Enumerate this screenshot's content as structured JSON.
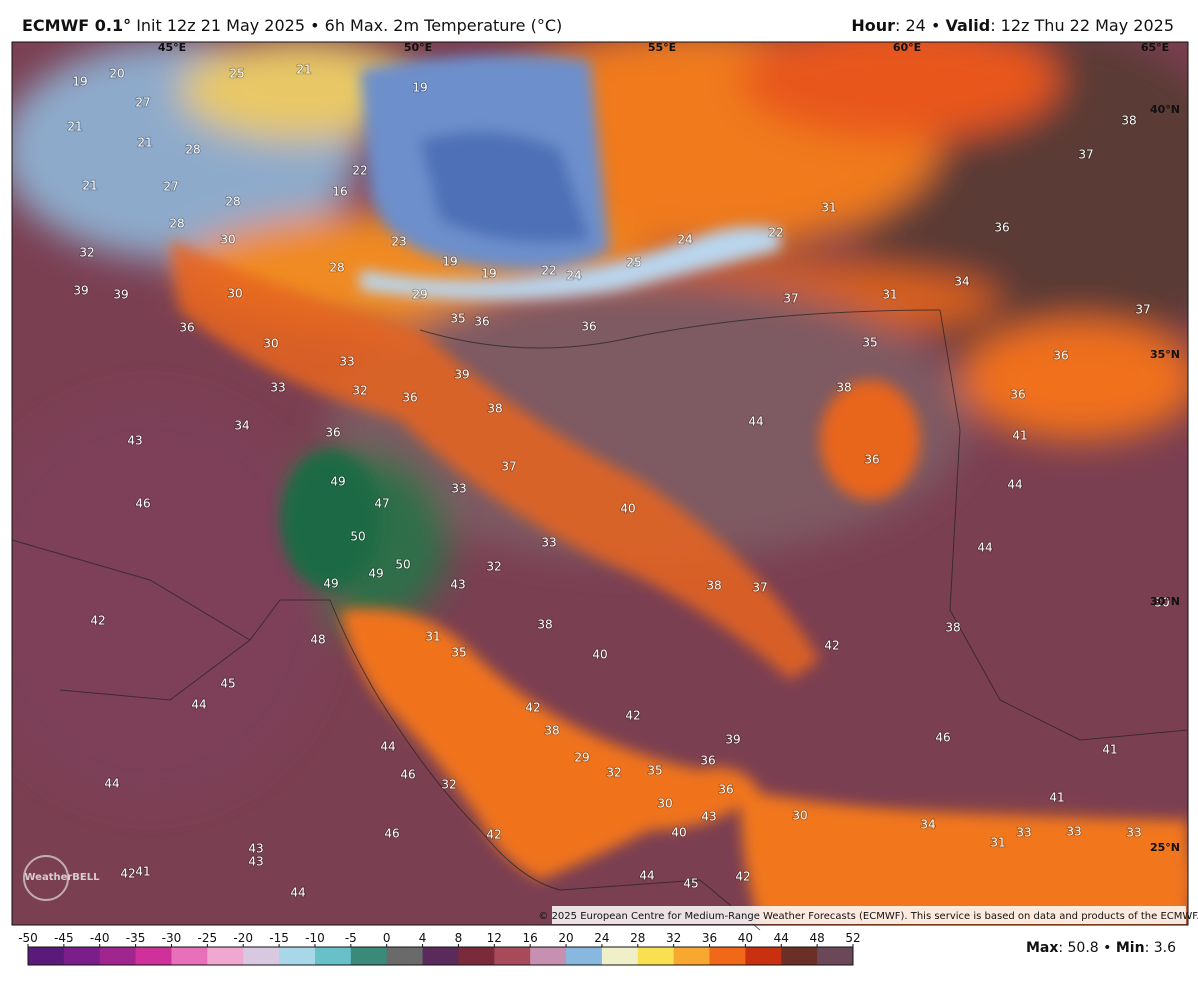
{
  "header": {
    "model": "ECMWF 0.1°",
    "title": "Init 12z 21 May 2025 • 6h Max. 2m Temperature (°C)",
    "hour_key": "Hour",
    "hour_value": ": 24 • ",
    "valid_key": "Valid",
    "valid_value": ": 12z Thu 22 May 2025"
  },
  "map": {
    "graticule": [
      "45°E",
      "50°E",
      "55°E",
      "60°E",
      "65°E",
      "40°N",
      "35°N",
      "30°N",
      "25°N"
    ],
    "labels": [
      "19",
      "20",
      "25",
      "21",
      "19",
      "27",
      "21",
      "21",
      "28",
      "22",
      "16",
      "21",
      "27",
      "28",
      "28",
      "30",
      "23",
      "19",
      "19",
      "22",
      "24",
      "25",
      "24",
      "22",
      "31",
      "36",
      "37",
      "38",
      "32",
      "39",
      "39",
      "30",
      "28",
      "29",
      "35",
      "36",
      "36",
      "37",
      "31",
      "34",
      "37",
      "35",
      "36",
      "36",
      "38",
      "41",
      "36",
      "44",
      "44",
      "36",
      "30",
      "33",
      "33",
      "32",
      "36",
      "39",
      "38",
      "44",
      "34",
      "36",
      "43",
      "37",
      "49",
      "33",
      "46",
      "47",
      "40",
      "50",
      "33",
      "50",
      "49",
      "32",
      "43",
      "49",
      "38",
      "37",
      "30",
      "42",
      "38",
      "31",
      "48",
      "38",
      "42",
      "35",
      "40",
      "45",
      "44",
      "42",
      "42",
      "38",
      "46",
      "41",
      "44",
      "29",
      "32",
      "35",
      "36",
      "39",
      "46",
      "32",
      "44",
      "30",
      "36",
      "41",
      "30",
      "43",
      "40",
      "34",
      "33",
      "31",
      "33",
      "33",
      "46",
      "42",
      "43",
      "43",
      "42",
      "41",
      "44",
      "45",
      "42",
      "44"
    ],
    "copyright": "© 2025 European Centre for Medium-Range Weather Forecasts (ECMWF). This service is based on data and products of the ECMWF.",
    "logo": "WeatherBELL"
  },
  "colorbar": {
    "ticks": [
      -50,
      -45,
      -40,
      -35,
      -30,
      -25,
      -20,
      -15,
      -10,
      -5,
      0,
      4,
      8,
      12,
      16,
      20,
      24,
      28,
      32,
      36,
      40,
      44,
      48,
      52
    ]
  },
  "footer": {
    "max_key": "Max",
    "max_value": ": 50.8 • ",
    "min_key": "Min",
    "min_value": ": 3.6"
  }
}
